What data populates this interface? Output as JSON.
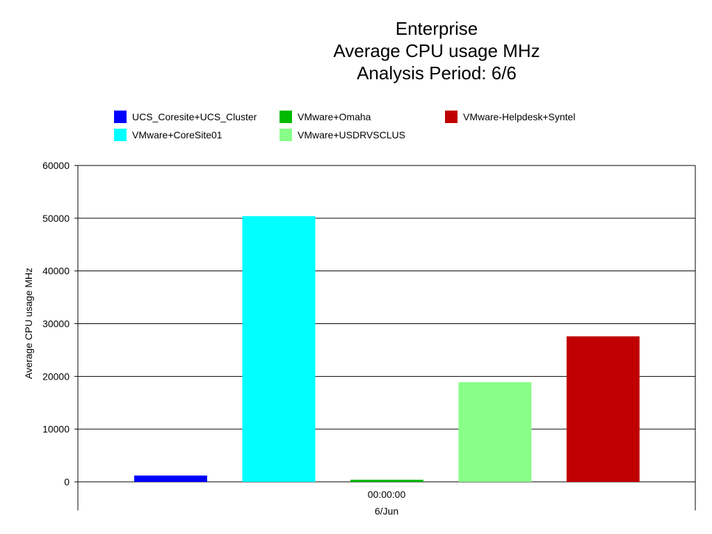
{
  "chart_data": {
    "type": "bar",
    "title": [
      "Enterprise",
      "Average CPU usage MHz",
      "Analysis Period: 6/6"
    ],
    "xlabel": "6/Jun",
    "x_tick": "00:00:00",
    "ylabel": "Average CPU usage MHz",
    "ylim": [
      0,
      60000
    ],
    "yticks": [
      "0",
      "10000",
      "20000",
      "30000",
      "40000",
      "50000",
      "60000"
    ],
    "grid": true,
    "legend_position": "top",
    "series": [
      {
        "name": "UCS_Coresite+UCS_Cluster",
        "value": 1200,
        "color": "#0000ff"
      },
      {
        "name": "VMware+CoreSite01",
        "value": 50400,
        "color": "#00ffff"
      },
      {
        "name": "VMware+Omaha",
        "value": 400,
        "color": "#00bb00"
      },
      {
        "name": "VMware+USDRVSCLUS",
        "value": 18900,
        "color": "#88ff88"
      },
      {
        "name": "VMware-Helpdesk+Syntel",
        "value": 27600,
        "color": "#c00000"
      }
    ],
    "legend_order": [
      0,
      2,
      4,
      1,
      3
    ]
  }
}
